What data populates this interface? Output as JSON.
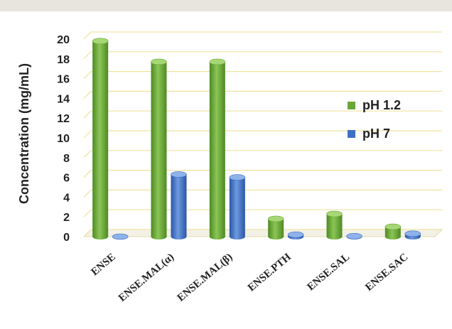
{
  "chart_data": {
    "type": "bar",
    "title": "",
    "xlabel": "",
    "ylabel": "Concentration (mg/mL)",
    "ylim": [
      0,
      20
    ],
    "yticks": [
      0,
      2,
      4,
      6,
      8,
      10,
      12,
      14,
      16,
      18,
      20
    ],
    "grid": true,
    "legend_position": "right",
    "categories": [
      "ENSE",
      "ENSE.MAL(α)",
      "ENSE.MAL(β)",
      "ENSE.PTH",
      "ENSE.SAL",
      "ENSE.SAC"
    ],
    "series": [
      {
        "name": "pH 1.2",
        "color": "#6aa73a",
        "values": [
          19.8,
          17.7,
          17.7,
          1.8,
          2.3,
          1.0
        ]
      },
      {
        "name": "pH 7",
        "color": "#3f6fc4",
        "values": [
          0.0,
          6.3,
          6.0,
          0.2,
          0.05,
          0.3
        ]
      }
    ]
  }
}
